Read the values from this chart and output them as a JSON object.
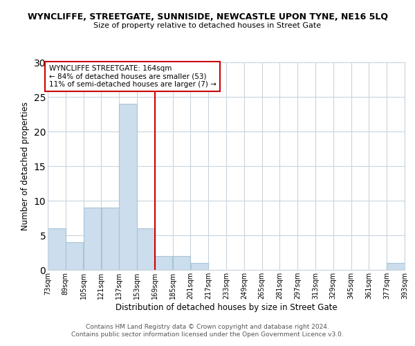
{
  "title": "WYNCLIFFE, STREETGATE, SUNNISIDE, NEWCASTLE UPON TYNE, NE16 5LQ",
  "subtitle": "Size of property relative to detached houses in Street Gate",
  "xlabel": "Distribution of detached houses by size in Street Gate",
  "ylabel": "Number of detached properties",
  "bin_edges": [
    73,
    89,
    105,
    121,
    137,
    153,
    169,
    185,
    201,
    217,
    233,
    249,
    265,
    281,
    297,
    313,
    329,
    345,
    361,
    377,
    393
  ],
  "bar_heights": [
    6,
    4,
    9,
    9,
    24,
    6,
    2,
    2,
    1,
    0,
    0,
    0,
    0,
    0,
    0,
    0,
    0,
    0,
    0,
    1
  ],
  "bar_color": "#ccdded",
  "bar_edgecolor": "#a8c4d8",
  "reference_line_x": 169,
  "reference_line_color": "#cc0000",
  "ylim": [
    0,
    30
  ],
  "annotation_text": "WYNCLIFFE STREETGATE: 164sqm\n← 84% of detached houses are smaller (53)\n11% of semi-detached houses are larger (7) →",
  "annotation_box_edgecolor": "#cc0000",
  "tick_labels": [
    "73sqm",
    "89sqm",
    "105sqm",
    "121sqm",
    "137sqm",
    "153sqm",
    "169sqm",
    "185sqm",
    "201sqm",
    "217sqm",
    "233sqm",
    "249sqm",
    "265sqm",
    "281sqm",
    "297sqm",
    "313sqm",
    "329sqm",
    "345sqm",
    "361sqm",
    "377sqm",
    "393sqm"
  ],
  "footnote": "Contains HM Land Registry data © Crown copyright and database right 2024.\nContains public sector information licensed under the Open Government Licence v3.0.",
  "background_color": "#ffffff",
  "grid_color": "#c8d4dc"
}
